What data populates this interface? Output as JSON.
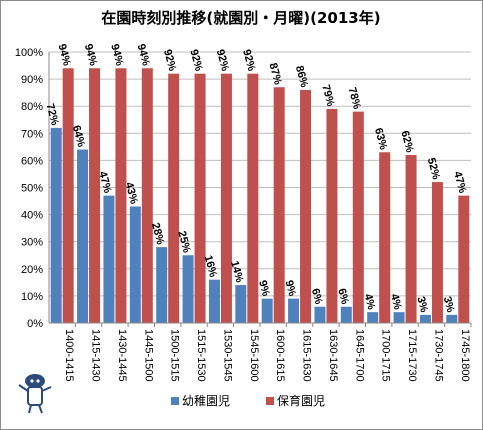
{
  "chart_data": {
    "type": "bar",
    "title": "在園時刻別推移(就園別・月曜)(2013年)",
    "categories": [
      "1400-1415",
      "1415-1430",
      "1430-1445",
      "1445-1500",
      "1500-1515",
      "1515-1530",
      "1530-1545",
      "1545-1600",
      "1600-1615",
      "1615-1630",
      "1630-1645",
      "1645-1700",
      "1700-1715",
      "1715-1730",
      "1730-1745",
      "1745-1800"
    ],
    "series": [
      {
        "name": "幼稚園児",
        "color": "#4f81bd",
        "values": [
          72,
          64,
          47,
          43,
          28,
          25,
          16,
          14,
          9,
          9,
          6,
          6,
          4,
          4,
          3,
          3
        ]
      },
      {
        "name": "保育園児",
        "color": "#c0504d",
        "values": [
          94,
          94,
          94,
          94,
          92,
          92,
          92,
          92,
          87,
          86,
          79,
          78,
          63,
          62,
          52,
          47
        ]
      }
    ],
    "yticks": [
      "0%",
      "10%",
      "20%",
      "30%",
      "40%",
      "50%",
      "60%",
      "70%",
      "80%",
      "90%",
      "100%"
    ],
    "ylim": [
      0,
      100
    ],
    "grid": true,
    "legend_position": "bottom",
    "value_suffix": "%"
  }
}
